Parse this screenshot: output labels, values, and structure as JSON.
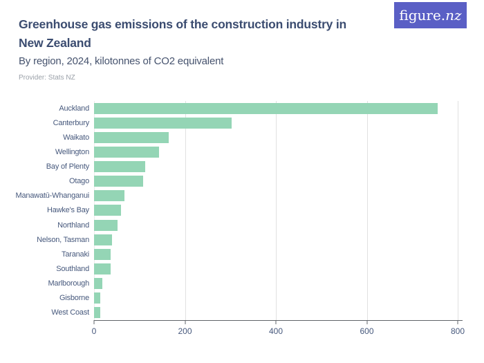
{
  "header": {
    "title": "Greenhouse gas emissions of the construction industry in New Zealand",
    "subtitle": "By region, 2024, kilotonnes of CO2 equivalent",
    "provider": "Provider: Stats NZ",
    "logo": {
      "prefix": "figure.",
      "suffix": "nz"
    }
  },
  "colors": {
    "logo_background": "#5a5fc5",
    "logo_text": "#ffffff",
    "title_text": "#3b4c70",
    "subtitle_text": "#46536e",
    "provider_text": "#9aa0a8",
    "axis_text": "#46587c",
    "bar_fill": "#94d5b5",
    "gridline": "#e0e0e0",
    "axis_line": "#5f6368",
    "background": "#ffffff"
  },
  "chart_data": {
    "type": "bar",
    "orientation": "horizontal",
    "title": "Greenhouse gas emissions of the construction industry in New Zealand",
    "subtitle": "By region, 2024, kilotonnes of CO2 equivalent",
    "xlabel": "",
    "ylabel": "",
    "unit": "kilotonnes of CO2 equivalent",
    "year": "2024",
    "categories": [
      "Auckland",
      "Canterbury",
      "Waikato",
      "Wellington",
      "Bay of Plenty",
      "Otago",
      "Manawatū-Whanganui",
      "Hawke's Bay",
      "Northland",
      "Nelson, Tasman",
      "Taranaki",
      "Southland",
      "Marlborough",
      "Gisborne",
      "West Coast"
    ],
    "values": [
      756,
      302,
      164,
      143,
      113,
      108,
      67,
      60,
      52,
      39,
      37,
      36,
      18,
      14,
      13
    ],
    "xlim": [
      0,
      800
    ],
    "xticks": [
      0,
      200,
      400,
      600,
      800
    ],
    "grid": true,
    "legend": false
  }
}
